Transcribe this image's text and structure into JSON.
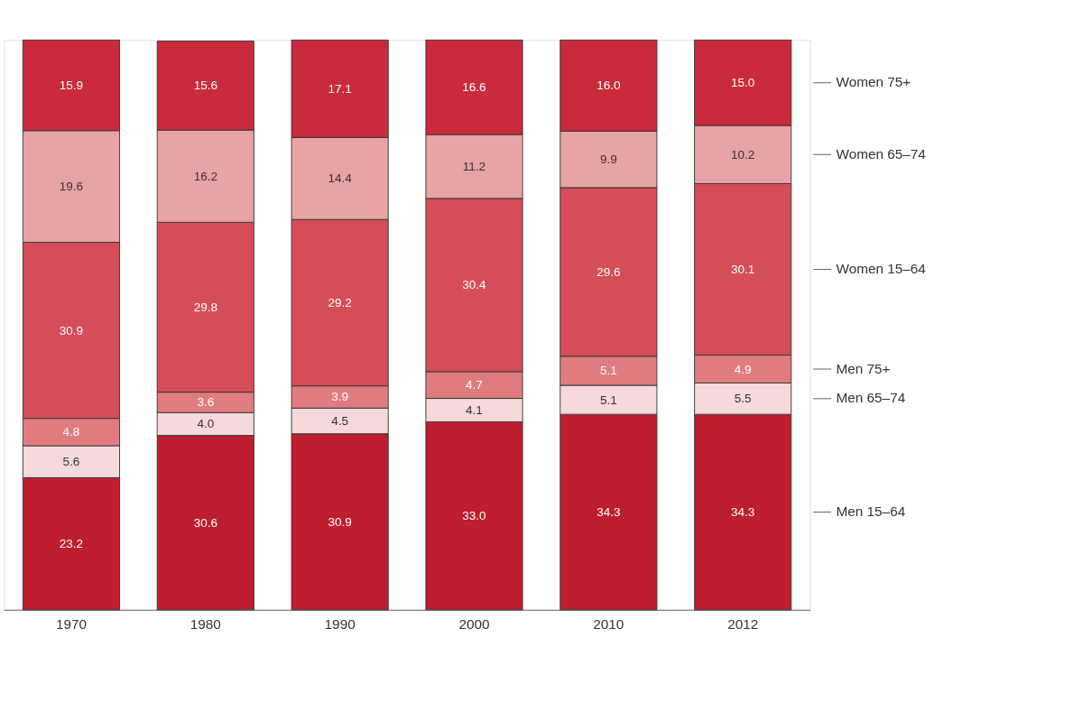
{
  "chart_data": {
    "type": "bar",
    "stacked": true,
    "legend": "right",
    "categories": [
      "1970",
      "1980",
      "1990",
      "2000",
      "2010",
      "2012"
    ],
    "series": [
      {
        "name": "Men 15–64",
        "color": "#be1e2d",
        "values": [
          23.2,
          30.6,
          30.9,
          33.0,
          34.3,
          34.3
        ],
        "value_labels": [
          "23.2",
          "30.6",
          "30.9",
          "33.0",
          "34.3",
          "34.3"
        ]
      },
      {
        "name": "Men 65–74",
        "color": "#f6d9d9",
        "values": [
          5.6,
          4.0,
          4.5,
          4.1,
          5.1,
          5.5
        ],
        "value_labels": [
          "5.6",
          "4.0",
          "4.5",
          "4.1",
          "5.1",
          "5.5"
        ]
      },
      {
        "name": "Men 75+",
        "color": "#e07c80",
        "values": [
          4.8,
          3.6,
          3.9,
          4.7,
          5.1,
          4.9
        ],
        "value_labels": [
          "4.8",
          "3.6",
          "3.9",
          "4.7",
          "5.1",
          "4.9"
        ]
      },
      {
        "name": "Women 15–64",
        "color": "#d44d58",
        "values": [
          30.9,
          29.8,
          29.2,
          30.4,
          29.6,
          30.1
        ],
        "value_labels": [
          "30.9",
          "29.8",
          "29.2",
          "30.4",
          "29.6",
          "30.1"
        ]
      },
      {
        "name": "Women 65–74",
        "color": "#e8a3a4",
        "values": [
          19.6,
          16.2,
          14.4,
          11.2,
          9.9,
          10.2
        ],
        "value_labels": [
          "19.6",
          "16.2",
          "14.4",
          "11.2",
          "9.9",
          "10.2"
        ]
      },
      {
        "name": "Women 75+",
        "color": "#c92b3c",
        "values": [
          15.9,
          15.6,
          17.1,
          16.6,
          16.0,
          15.0
        ],
        "value_labels": [
          "15.9",
          "15.6",
          "17.1",
          "16.6",
          "16.0",
          "15.0"
        ]
      }
    ]
  }
}
